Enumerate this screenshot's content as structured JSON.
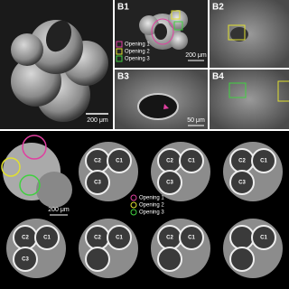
{
  "panel_a": {
    "scale_bar": "200 μm"
  },
  "panel_b1": {
    "label": "B1",
    "legend": [
      "Opening 1",
      "Opening 2",
      "Opening 3"
    ],
    "scale_bar": "200 μm"
  },
  "panel_b2": {
    "label": "B2"
  },
  "panel_b3": {
    "label": "B3",
    "scale_bar": "50 μm"
  },
  "panel_b4": {
    "label": "B4"
  },
  "panel_c": {
    "scale_bar": "200 μm",
    "legend": [
      "Opening 1",
      "Opening 2",
      "Opening 3"
    ],
    "slices": [
      [
        "C1",
        "C2",
        "C3"
      ],
      [
        "C1",
        "C2",
        "C3"
      ],
      [
        "C2",
        "C1",
        "C3"
      ],
      [
        "C1",
        "C2",
        "C3"
      ],
      [
        "C1",
        "C2"
      ],
      [
        "C2",
        "C1"
      ],
      [
        "C1"
      ]
    ]
  }
}
